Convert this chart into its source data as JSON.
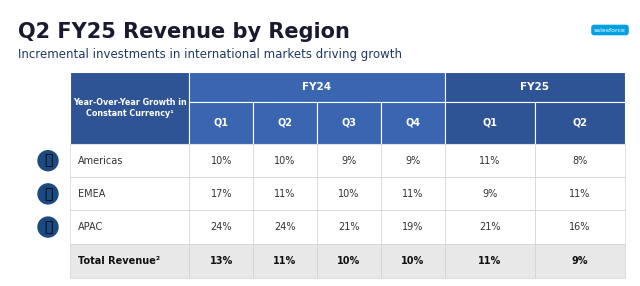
{
  "title": "Q2 FY25 Revenue by Region",
  "subtitle": "Incremental investments in international markets driving growth",
  "header_color": "#2E5496",
  "header_color_fy24": "#3A65B0",
  "subheader_color": "#1F3864",
  "col_header_label": "Year-Over-Year Growth in\nConstant Currency¹",
  "fy24_label": "FY24",
  "fy25_label": "FY25",
  "quarters_fy24": [
    "Q1",
    "Q2",
    "Q3",
    "Q4"
  ],
  "quarters_fy25": [
    "Q1",
    "Q2"
  ],
  "regions": [
    "Americas",
    "EMEA",
    "APAC"
  ],
  "total_label": "Total Revenue²",
  "data": {
    "Americas": [
      "10%",
      "10%",
      "9%",
      "9%",
      "11%",
      "8%"
    ],
    "EMEA": [
      "17%",
      "11%",
      "10%",
      "11%",
      "9%",
      "11%"
    ],
    "APAC": [
      "24%",
      "24%",
      "21%",
      "19%",
      "21%",
      "16%"
    ],
    "Total Revenue²": [
      "13%",
      "11%",
      "10%",
      "10%",
      "11%",
      "9%"
    ]
  },
  "bg_color": "#FFFFFF",
  "title_color": "#1a1a2e",
  "subtitle_color": "#1F3864",
  "text_color_header": "#FFFFFF",
  "text_color_data": "#333333",
  "text_color_total": "#111111",
  "row_bg_colors": [
    "#FFFFFF",
    "#FFFFFF",
    "#FFFFFF"
  ],
  "total_row_bg": "#E8E8E8",
  "salesforce_cloud_color": "#00A1E0",
  "grid_color": "#CCCCCC"
}
